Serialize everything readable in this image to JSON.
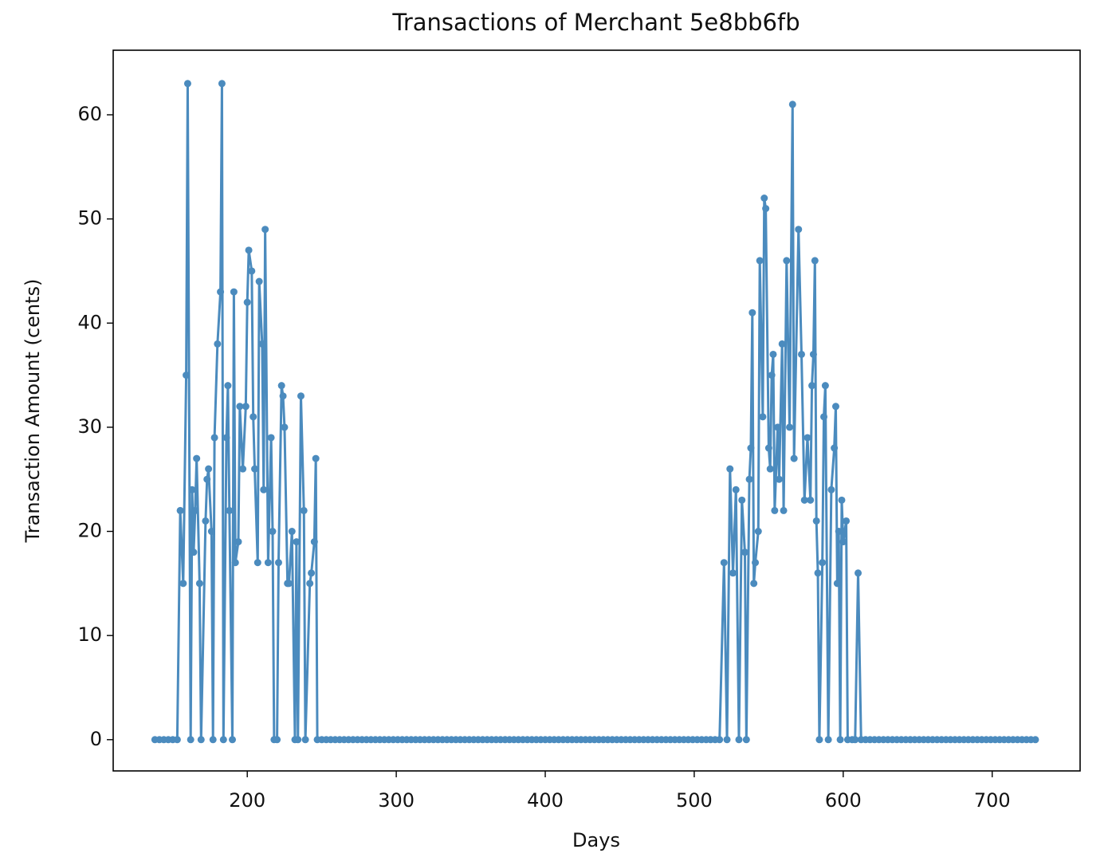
{
  "chart_data": {
    "type": "line",
    "title": "Transactions of Merchant 5e8bb6fb",
    "x_label": "Days",
    "y_label": "Transaction Amount (cents)",
    "color": "#4b8bbe",
    "xlim": [
      110,
      759
    ],
    "ylim": [
      -3.0,
      66.2
    ],
    "xticks": [
      200,
      300,
      400,
      500,
      600,
      700
    ],
    "yticks": [
      0,
      10,
      20,
      30,
      40,
      50,
      60
    ],
    "x": [
      138,
      141,
      144,
      147,
      150,
      153,
      155,
      157,
      159,
      160,
      162,
      163,
      164,
      165,
      166,
      168,
      169,
      172,
      173,
      174,
      176,
      177,
      178,
      180,
      182,
      183,
      184,
      186,
      187,
      188,
      190,
      191,
      192,
      194,
      195,
      197,
      199,
      200,
      201,
      203,
      204,
      205,
      207,
      208,
      210,
      211,
      212,
      214,
      216,
      217,
      218,
      220,
      221,
      223,
      224,
      225,
      227,
      228,
      230,
      232,
      233,
      234,
      236,
      238,
      239,
      242,
      243,
      245,
      246,
      247,
      250,
      253,
      256,
      259,
      262,
      265,
      268,
      271,
      274,
      277,
      280,
      283,
      286,
      289,
      292,
      295,
      298,
      301,
      304,
      307,
      310,
      313,
      316,
      319,
      322,
      325,
      328,
      331,
      334,
      337,
      340,
      343,
      346,
      349,
      352,
      355,
      358,
      361,
      364,
      367,
      370,
      373,
      376,
      379,
      382,
      385,
      388,
      391,
      394,
      397,
      400,
      403,
      406,
      409,
      412,
      415,
      418,
      421,
      424,
      427,
      430,
      433,
      436,
      439,
      442,
      445,
      448,
      451,
      454,
      457,
      460,
      463,
      466,
      469,
      472,
      475,
      478,
      481,
      484,
      487,
      490,
      493,
      496,
      499,
      502,
      505,
      508,
      511,
      514,
      517,
      520,
      522,
      524,
      526,
      528,
      530,
      532,
      534,
      535,
      537,
      538,
      539,
      540,
      541,
      543,
      544,
      546,
      547,
      548,
      550,
      551,
      552,
      553,
      554,
      556,
      557,
      559,
      560,
      562,
      564,
      566,
      567,
      570,
      572,
      574,
      576,
      578,
      579,
      580,
      581,
      582,
      583,
      584,
      586,
      587,
      588,
      590,
      592,
      594,
      595,
      596,
      597,
      598,
      599,
      600,
      602,
      603,
      606,
      608,
      610,
      612,
      615,
      618,
      621,
      624,
      627,
      630,
      633,
      636,
      639,
      642,
      645,
      648,
      651,
      654,
      657,
      660,
      663,
      666,
      669,
      672,
      675,
      678,
      681,
      684,
      687,
      690,
      693,
      696,
      699,
      702,
      705,
      708,
      711,
      714,
      717,
      720,
      723,
      726,
      729
    ],
    "values": [
      0,
      0,
      0,
      0,
      0,
      0,
      22,
      15,
      35,
      63,
      0,
      24,
      18,
      22,
      27,
      15,
      0,
      21,
      25,
      26,
      20,
      0,
      29,
      38,
      43,
      63,
      0,
      29,
      34,
      22,
      0,
      43,
      17,
      19,
      32,
      26,
      32,
      42,
      47,
      45,
      31,
      26,
      17,
      44,
      38,
      24,
      49,
      17,
      29,
      20,
      0,
      0,
      17,
      34,
      33,
      30,
      15,
      15,
      20,
      0,
      19,
      0,
      33,
      22,
      0,
      15,
      16,
      19,
      27,
      0,
      0,
      0,
      0,
      0,
      0,
      0,
      0,
      0,
      0,
      0,
      0,
      0,
      0,
      0,
      0,
      0,
      0,
      0,
      0,
      0,
      0,
      0,
      0,
      0,
      0,
      0,
      0,
      0,
      0,
      0,
      0,
      0,
      0,
      0,
      0,
      0,
      0,
      0,
      0,
      0,
      0,
      0,
      0,
      0,
      0,
      0,
      0,
      0,
      0,
      0,
      0,
      0,
      0,
      0,
      0,
      0,
      0,
      0,
      0,
      0,
      0,
      0,
      0,
      0,
      0,
      0,
      0,
      0,
      0,
      0,
      0,
      0,
      0,
      0,
      0,
      0,
      0,
      0,
      0,
      0,
      0,
      0,
      0,
      0,
      0,
      0,
      0,
      0,
      0,
      0,
      17,
      0,
      26,
      16,
      24,
      0,
      23,
      18,
      0,
      25,
      28,
      41,
      15,
      17,
      20,
      46,
      31,
      52,
      51,
      28,
      26,
      35,
      37,
      22,
      30,
      25,
      38,
      22,
      46,
      30,
      61,
      27,
      49,
      37,
      23,
      29,
      23,
      34,
      37,
      46,
      21,
      16,
      0,
      17,
      31,
      34,
      0,
      24,
      28,
      32,
      15,
      20,
      0,
      23,
      19,
      21,
      0,
      0,
      0,
      16,
      0,
      0,
      0,
      0,
      0,
      0,
      0,
      0,
      0,
      0,
      0,
      0,
      0,
      0,
      0,
      0,
      0,
      0,
      0,
      0,
      0,
      0,
      0,
      0,
      0,
      0,
      0,
      0,
      0,
      0,
      0,
      0,
      0,
      0,
      0,
      0,
      0,
      0,
      0,
      0
    ]
  }
}
